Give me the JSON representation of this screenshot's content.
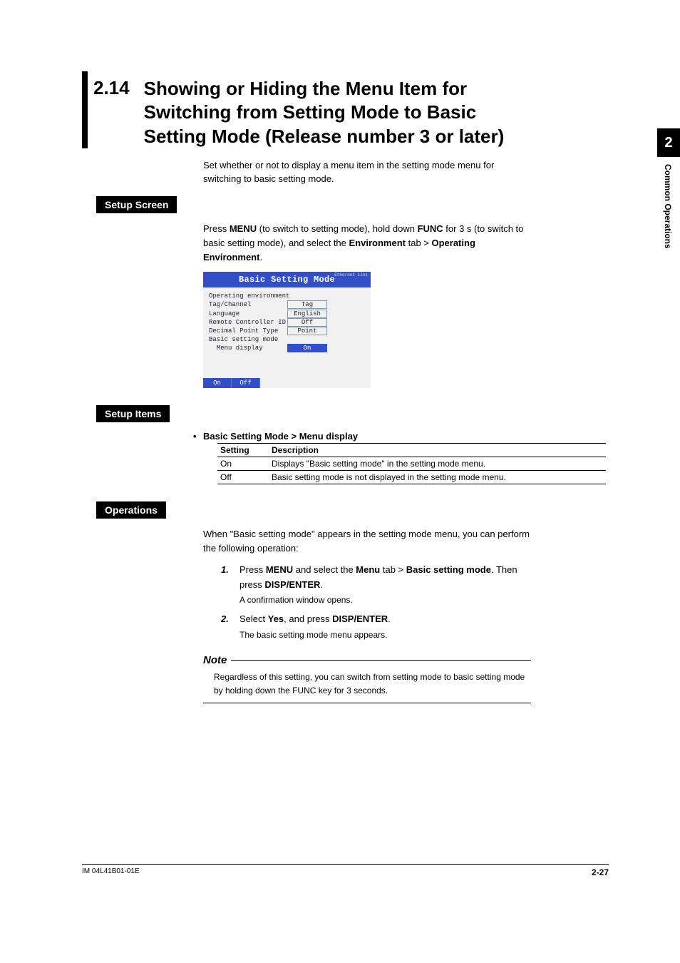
{
  "section": {
    "number": "2.14",
    "title": "Showing or Hiding the Menu Item for Switching from Setting Mode to Basic Setting Mode (Release number 3 or later)",
    "intro": "Set whether or not to display a menu item in the setting mode menu for switching to basic setting mode."
  },
  "labels": {
    "setup_screen": "Setup Screen",
    "setup_items": "Setup Items",
    "operations": "Operations"
  },
  "setup_screen": {
    "press": "Press ",
    "menu_b": "MENU",
    "txt1": " (to switch to setting mode), hold down ",
    "func_b": "FUNC",
    "txt2": " for 3 s (to switch to basic setting mode), and select the ",
    "env_b": "Environment",
    "txt3": " tab > ",
    "openv_b": "Operating Environment",
    "txt4": "."
  },
  "screenshot": {
    "title": "Basic Setting Mode",
    "corner": "Ethernet\nLink",
    "rows": [
      {
        "label": "Operating environment",
        "val": "",
        "kind": "plain"
      },
      {
        "label": "Tag/Channel",
        "val": "Tag",
        "kind": "box"
      },
      {
        "label": "Language",
        "val": "English",
        "kind": "box"
      },
      {
        "label": "Remote Controller ID",
        "val": "Off",
        "kind": "box"
      },
      {
        "label": "Decimal Point Type",
        "val": "Point",
        "kind": "box"
      },
      {
        "label": "Basic setting mode",
        "val": "",
        "kind": "plain"
      },
      {
        "label": "  Menu display",
        "val": "On",
        "kind": "hi"
      }
    ],
    "bottom": {
      "on": "On",
      "off": "Off"
    }
  },
  "setup_items": {
    "heading": "Basic Setting Mode > Menu display",
    "th_setting": "Setting",
    "th_desc": "Description",
    "rows": [
      {
        "s": "On",
        "d": "Displays \"Basic setting mode\" in the setting mode menu."
      },
      {
        "s": "Off",
        "d": "Basic setting mode is not displayed in the setting mode menu."
      }
    ]
  },
  "operations": {
    "intro": "When \"Basic setting mode\" appears in the setting mode menu, you can perform the following operation:",
    "step1": {
      "t1": "Press ",
      "b1": "MENU",
      "t2": " and select the ",
      "b2": "Menu",
      "t3": " tab > ",
      "b3": "Basic setting mode",
      "t4": ". Then press ",
      "b4": "DISP/ENTER",
      "t5": ".",
      "sub": " A confirmation window opens."
    },
    "step2": {
      "t1": "Select ",
      "b1": "Yes",
      "t2": ", and press ",
      "b2": "DISP/ENTER",
      "t3": ".",
      "sub": " The basic setting mode menu appears."
    }
  },
  "note": {
    "head": "Note",
    "body": "Regardless of this setting, you can switch from setting mode to basic setting mode by holding down the FUNC key for 3 seconds."
  },
  "side": {
    "num": "2",
    "text": "Common Operations"
  },
  "footer": {
    "left": "IM 04L41B01-01E",
    "right": "2-27"
  }
}
